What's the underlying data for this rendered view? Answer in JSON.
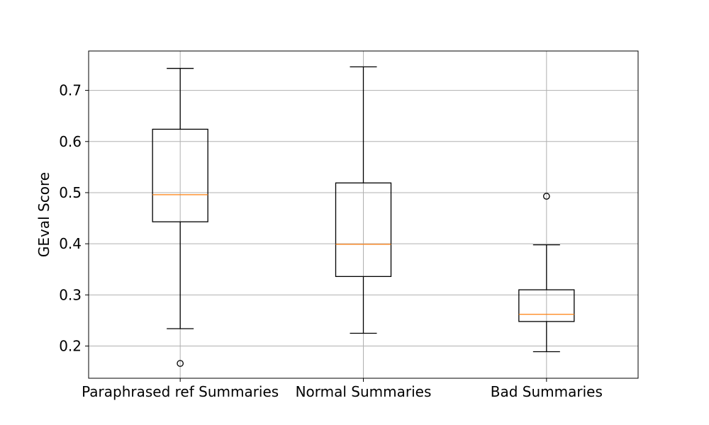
{
  "chart_data": {
    "type": "box",
    "ylabel": "GEval Score",
    "ylim": [
      0.137,
      0.777
    ],
    "yticks": [
      0.2,
      0.3,
      0.4,
      0.5,
      0.6,
      0.7
    ],
    "ytick_labels": [
      "0.2",
      "0.3",
      "0.4",
      "0.5",
      "0.6",
      "0.7"
    ],
    "grid": true,
    "categories": [
      "Paraphrased ref Summaries",
      "Normal Summaries",
      "Bad Summaries"
    ],
    "boxes": [
      {
        "whisker_low": 0.234,
        "q1": 0.443,
        "median": 0.496,
        "q3": 0.624,
        "whisker_high": 0.743,
        "outliers": [
          0.166
        ]
      },
      {
        "whisker_low": 0.225,
        "q1": 0.336,
        "median": 0.399,
        "q3": 0.519,
        "whisker_high": 0.746,
        "outliers": []
      },
      {
        "whisker_low": 0.189,
        "q1": 0.248,
        "median": 0.262,
        "q3": 0.31,
        "whisker_high": 0.398,
        "outliers": [
          0.493
        ]
      }
    ],
    "colors": {
      "median": "#ff7f0e",
      "box": "#000000",
      "grid": "#b0b0b0"
    }
  }
}
